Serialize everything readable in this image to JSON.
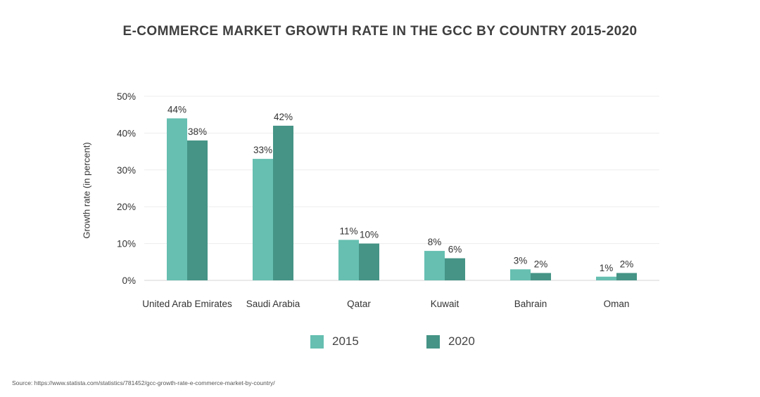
{
  "title": "E-COMMERCE MARKET GROWTH RATE IN THE GCC BY COUNTRY 2015-2020",
  "source": "Source: https://www.statista.com/statistics/781452/gcc-growth-rate-e-commerce-market-by-country/",
  "chart_data": {
    "type": "bar",
    "title": "E-COMMERCE MARKET GROWTH RATE IN THE GCC BY COUNTRY 2015-2020",
    "xlabel": "",
    "ylabel": "Growth rate (in percent)",
    "categories": [
      "United Arab Emirates",
      "Saudi Arabia",
      "Qatar",
      "Kuwait",
      "Bahrain",
      "Oman"
    ],
    "series": [
      {
        "name": "2015",
        "color": "#66bfb1",
        "values": [
          44,
          33,
          11,
          8,
          3,
          1
        ]
      },
      {
        "name": "2020",
        "color": "#459486",
        "values": [
          38,
          42,
          10,
          6,
          2,
          2
        ]
      }
    ],
    "ylim": [
      0,
      50
    ],
    "yticks": [
      0,
      10,
      20,
      30,
      40,
      50
    ],
    "ytick_labels": [
      "0%",
      "10%",
      "20%",
      "30%",
      "40%",
      "50%"
    ],
    "value_suffix": "%",
    "grid": true,
    "legend": "bottom"
  }
}
